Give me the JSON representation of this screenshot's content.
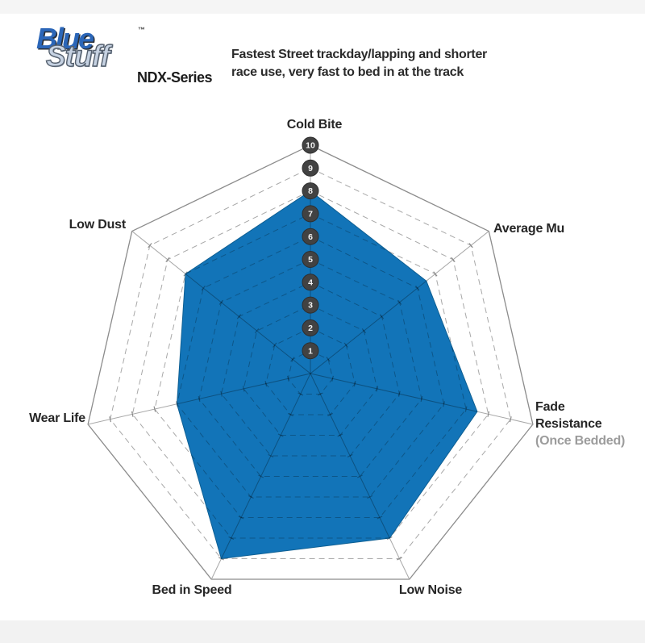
{
  "page": {
    "background": "#ffffff"
  },
  "header": {
    "logo_line1": "Blue",
    "logo_line2": "Stuff",
    "logo_tm": "™",
    "series": "NDX-Series",
    "description_line1": "Fastest Street trackday/lapping and shorter",
    "description_line2": "race use, very fast to bed in at the track"
  },
  "chart_data": {
    "type": "radar",
    "title": "Bluestuff NDX-Series brake pad performance",
    "categories": [
      "Cold Bite",
      "Average Mu",
      "Fade Resistance",
      "Low Noise",
      "Bed in Speed",
      "Wear Life",
      "Low Dust"
    ],
    "values": [
      8,
      6.5,
      7.5,
      8,
      9,
      6,
      7
    ],
    "axes": [
      {
        "label": "Cold Bite",
        "value": 8
      },
      {
        "label": "Average Mu",
        "value": 6.5
      },
      {
        "label": "Fade Resistance",
        "sublabel": "(Once Bedded)",
        "value": 7.5
      },
      {
        "label": "Low Noise",
        "value": 8
      },
      {
        "label": "Bed in Speed",
        "value": 9
      },
      {
        "label": "Wear Life",
        "value": 6
      },
      {
        "label": "Low Dust",
        "value": 7
      }
    ],
    "scale_ticks": [
      1,
      2,
      3,
      4,
      5,
      6,
      7,
      8,
      9,
      10
    ],
    "ylim": [
      0,
      10
    ],
    "grid": "dashed rings 1-9, solid outer ring 10, radial axes with cross ticks",
    "legend": "none",
    "colors": {
      "blue_fill": "#1274B8",
      "blue_edge": "#0E5F93",
      "grid": "#A8A8A8",
      "grid_outer": "#8C8C8C",
      "tick": "#8A8A8A",
      "inner_ring": "rgba(0,0,0,0.26)",
      "inner_axis": "rgba(0,0,0,0.30)",
      "badge_bg": "#424242",
      "badge_edge": "#2e2e2e",
      "badge_text": "#F2F2F2"
    }
  }
}
